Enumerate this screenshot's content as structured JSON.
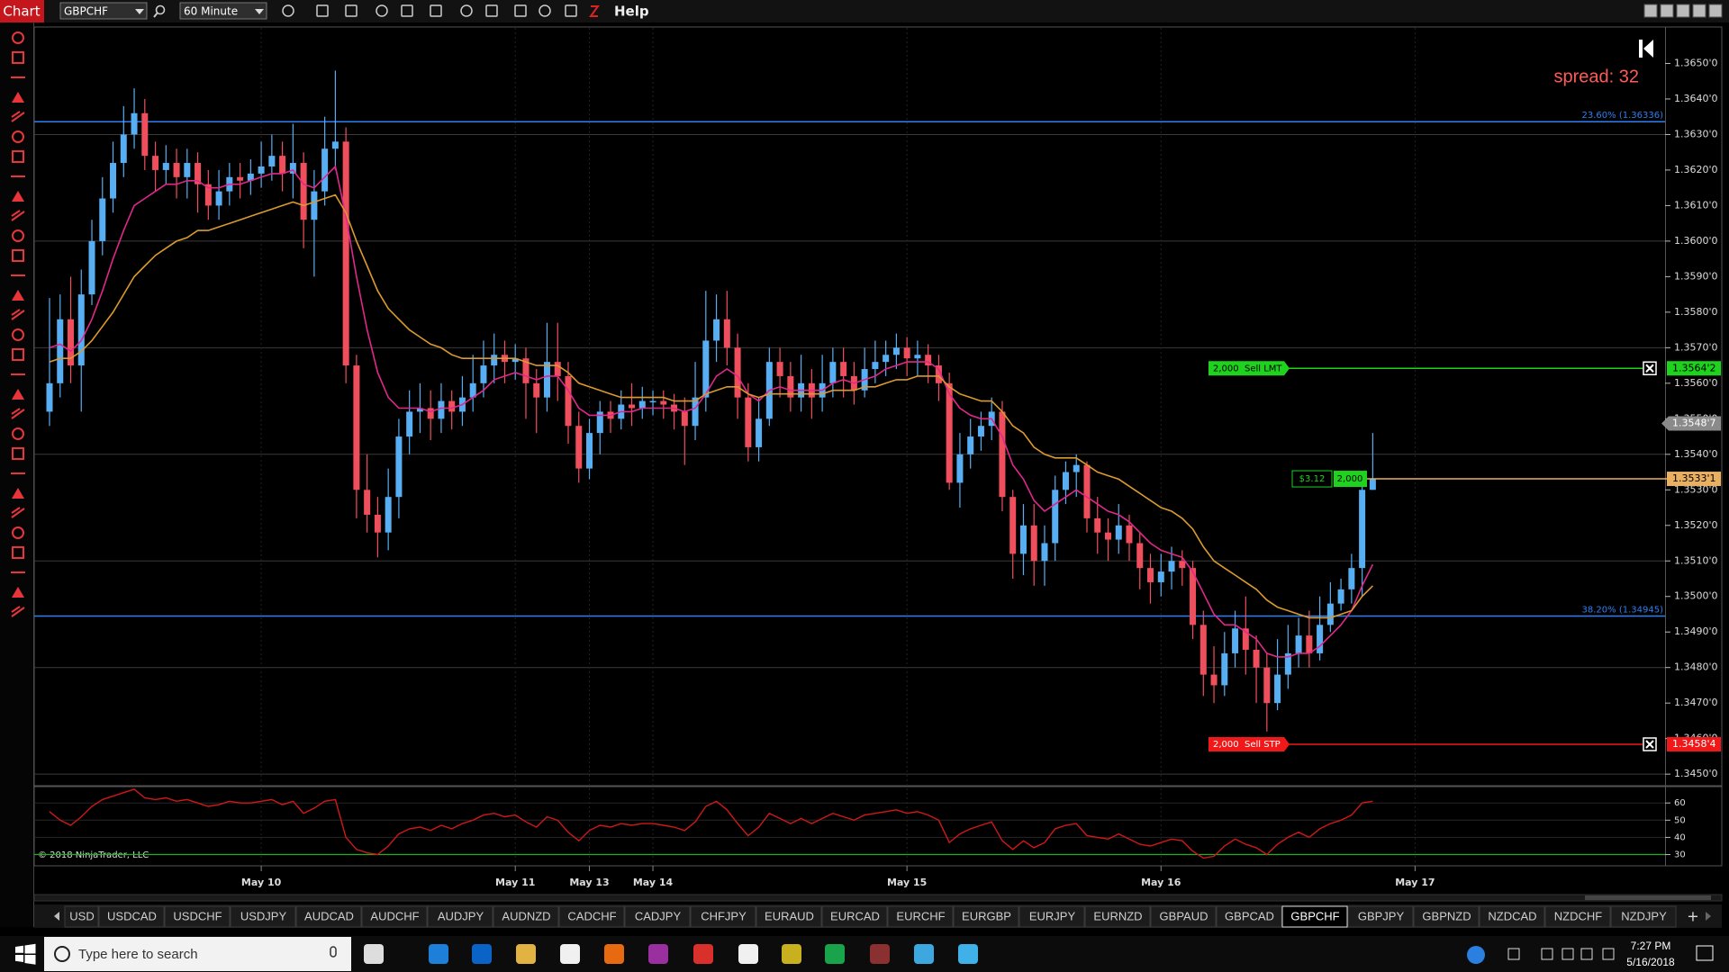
{
  "toolbar": {
    "title": "Chart",
    "instrument": "GBPCHF",
    "interval": "60 Minute",
    "help": "Help"
  },
  "chart_data": {
    "type": "candlestick",
    "categories": [
      null,
      null,
      null,
      null,
      null,
      null,
      null,
      null,
      null,
      null,
      null,
      null,
      null,
      null,
      null,
      null,
      null,
      null,
      null,
      null,
      "May 10",
      null,
      null,
      null,
      null,
      null,
      null,
      null,
      null,
      null,
      null,
      null,
      null,
      null,
      null,
      null,
      null,
      null,
      null,
      null,
      null,
      null,
      null,
      null,
      "May 11",
      null,
      null,
      null,
      null,
      null,
      null,
      "May 13",
      null,
      null,
      null,
      null,
      null,
      "May 14",
      null,
      null,
      null,
      null,
      null,
      null,
      null,
      null,
      null,
      null,
      null,
      null,
      null,
      null,
      null,
      null,
      null,
      null,
      null,
      null,
      null,
      null,
      null,
      "May 15",
      null,
      null,
      null,
      null,
      null,
      null,
      null,
      null,
      null,
      null,
      null,
      null,
      null,
      null,
      null,
      null,
      null,
      null,
      null,
      null,
      null,
      null,
      null,
      "May 16",
      null,
      null,
      null,
      null,
      null,
      null,
      null,
      null,
      null,
      null,
      null,
      null,
      null,
      null,
      null,
      null,
      null,
      null,
      null,
      null,
      null,
      null,
      null,
      "May 17"
    ],
    "open": [
      1.3552,
      1.356,
      1.3578,
      1.3565,
      1.3585,
      1.36,
      1.3612,
      1.3622,
      1.363,
      1.3636,
      1.3624,
      1.362,
      1.3622,
      1.3618,
      1.3622,
      1.3616,
      1.361,
      1.3614,
      1.3618,
      1.3617,
      1.3619,
      1.3621,
      1.3624,
      1.3619,
      1.3622,
      1.3606,
      1.3614,
      1.3626,
      1.3628,
      1.3565,
      1.353,
      1.3523,
      1.3518,
      1.3528,
      1.3545,
      1.3552,
      1.3553,
      1.355,
      1.3555,
      1.3552,
      1.3556,
      1.356,
      1.3565,
      1.3568,
      1.3566,
      1.3567,
      1.356,
      1.3556,
      1.3566,
      1.3562,
      1.3548,
      1.3536,
      1.3546,
      1.3552,
      1.355,
      1.3554,
      1.3553,
      1.3555,
      1.3555,
      1.3554,
      1.3552,
      1.3548,
      1.3556,
      1.3572,
      1.3578,
      1.357,
      1.3556,
      1.3542,
      1.355,
      1.3566,
      1.3562,
      1.3556,
      1.356,
      1.3556,
      1.356,
      1.3566,
      1.3562,
      1.3558,
      1.3564,
      1.3566,
      1.3568,
      1.357,
      1.3567,
      1.3568,
      1.3565,
      1.356,
      1.3532,
      1.354,
      1.3545,
      1.3548,
      1.3552,
      1.3528,
      1.3512,
      1.352,
      1.351,
      1.3515,
      1.353,
      1.3535,
      1.3537,
      1.3522,
      1.3518,
      1.3516,
      1.352,
      1.3515,
      1.3508,
      1.3504,
      1.3507,
      1.351,
      1.3508,
      1.3492,
      1.3478,
      1.3475,
      1.3484,
      1.3491,
      1.3485,
      1.348,
      1.347,
      1.3478,
      1.3484,
      1.3489,
      1.3484,
      1.3492,
      1.3498,
      1.3502,
      1.3508,
      1.353,
      null,
      null,
      null,
      null
    ],
    "high": [
      1.3584,
      1.3585,
      1.359,
      1.3592,
      1.3606,
      1.3618,
      1.3628,
      1.3638,
      1.3643,
      1.364,
      1.3628,
      1.3627,
      1.3626,
      1.3626,
      1.3625,
      1.362,
      1.362,
      1.3622,
      1.3622,
      1.3623,
      1.3628,
      1.363,
      1.3628,
      1.3633,
      1.3625,
      1.362,
      1.3635,
      1.3648,
      1.3632,
      1.3568,
      1.354,
      1.3528,
      1.3536,
      1.355,
      1.3558,
      1.356,
      1.3558,
      1.356,
      1.3558,
      1.3562,
      1.3568,
      1.3572,
      1.3574,
      1.3572,
      1.3571,
      1.357,
      1.3564,
      1.3577,
      1.3577,
      1.3566,
      1.3552,
      1.355,
      1.3555,
      1.3555,
      1.3558,
      1.356,
      1.3559,
      1.3558,
      1.3558,
      1.3557,
      1.3556,
      1.3566,
      1.3586,
      1.3585,
      1.3586,
      1.3574,
      1.356,
      1.3556,
      1.357,
      1.357,
      1.3566,
      1.3568,
      1.3564,
      1.3568,
      1.357,
      1.357,
      1.3566,
      1.357,
      1.3572,
      1.3572,
      1.3574,
      1.3573,
      1.3572,
      1.3571,
      1.3568,
      1.3563,
      1.3546,
      1.355,
      1.3552,
      1.3556,
      1.3555,
      1.353,
      1.3526,
      1.3526,
      1.352,
      1.3534,
      1.3538,
      1.354,
      1.3538,
      1.3528,
      1.3522,
      1.3526,
      1.3523,
      1.3518,
      1.3512,
      1.3512,
      1.3514,
      1.3513,
      1.351,
      1.3496,
      1.3486,
      1.349,
      1.3496,
      1.35,
      1.3489,
      1.3484,
      1.3488,
      1.3492,
      1.3494,
      1.3496,
      1.35,
      1.3504,
      1.3505,
      1.3512,
      1.3533,
      1.3546,
      null,
      null,
      null,
      null
    ],
    "low": [
      1.3548,
      1.3556,
      1.356,
      1.3552,
      1.3582,
      1.3596,
      1.3608,
      1.3618,
      1.3626,
      1.362,
      1.3614,
      1.3616,
      1.3612,
      1.3612,
      1.3608,
      1.3606,
      1.3606,
      1.361,
      1.3612,
      1.3613,
      1.3615,
      1.3617,
      1.3614,
      1.3612,
      1.3598,
      1.359,
      1.361,
      1.362,
      1.356,
      1.3522,
      1.3518,
      1.3511,
      1.3513,
      1.3522,
      1.354,
      1.3546,
      1.3544,
      1.3546,
      1.3547,
      1.3548,
      1.3552,
      1.3556,
      1.356,
      1.356,
      1.3561,
      1.355,
      1.3546,
      1.3552,
      1.3555,
      1.3543,
      1.3532,
      1.3533,
      1.354,
      1.3546,
      1.3547,
      1.3548,
      1.355,
      1.3551,
      1.355,
      1.3547,
      1.3537,
      1.3544,
      1.3552,
      1.3566,
      1.3565,
      1.355,
      1.3538,
      1.3538,
      1.3548,
      1.3556,
      1.3552,
      1.3552,
      1.355,
      1.3552,
      1.3556,
      1.3556,
      1.3554,
      1.3556,
      1.356,
      1.3562,
      1.3564,
      1.3562,
      1.3562,
      1.356,
      1.3555,
      1.353,
      1.3525,
      1.3536,
      1.3541,
      1.3544,
      1.3524,
      1.3505,
      1.3506,
      1.3503,
      1.3503,
      1.351,
      1.3526,
      1.3528,
      1.3518,
      1.3512,
      1.351,
      1.3512,
      1.351,
      1.3502,
      1.3498,
      1.35,
      1.3502,
      1.3503,
      1.3488,
      1.3472,
      1.347,
      1.3472,
      1.348,
      1.3478,
      1.347,
      1.3462,
      1.3468,
      1.3474,
      1.348,
      1.348,
      1.3482,
      1.349,
      1.3496,
      1.3498,
      1.35,
      1.353,
      null,
      null,
      null,
      null
    ],
    "close": [
      1.356,
      1.3578,
      1.3565,
      1.3585,
      1.36,
      1.3612,
      1.3622,
      1.363,
      1.3636,
      1.3624,
      1.362,
      1.3622,
      1.3618,
      1.3622,
      1.3616,
      1.361,
      1.3614,
      1.3618,
      1.3617,
      1.3619,
      1.3621,
      1.3624,
      1.3619,
      1.3622,
      1.3606,
      1.3614,
      1.3626,
      1.3628,
      1.3565,
      1.353,
      1.3523,
      1.3518,
      1.3528,
      1.3545,
      1.3552,
      1.3553,
      1.355,
      1.3555,
      1.3552,
      1.3556,
      1.356,
      1.3565,
      1.3568,
      1.3566,
      1.3567,
      1.356,
      1.3556,
      1.3566,
      1.3562,
      1.3548,
      1.3536,
      1.3546,
      1.3552,
      1.355,
      1.3554,
      1.3553,
      1.3555,
      1.3555,
      1.3554,
      1.3552,
      1.3548,
      1.3556,
      1.3572,
      1.3578,
      1.357,
      1.3556,
      1.3542,
      1.355,
      1.3566,
      1.3562,
      1.3556,
      1.356,
      1.3556,
      1.356,
      1.3566,
      1.3562,
      1.3558,
      1.3564,
      1.3566,
      1.3568,
      1.357,
      1.3567,
      1.3568,
      1.3565,
      1.356,
      1.3532,
      1.354,
      1.3545,
      1.3548,
      1.3552,
      1.3528,
      1.3512,
      1.352,
      1.351,
      1.3515,
      1.353,
      1.3535,
      1.3537,
      1.3522,
      1.3518,
      1.3516,
      1.352,
      1.3515,
      1.3508,
      1.3504,
      1.3507,
      1.351,
      1.3508,
      1.3492,
      1.3478,
      1.3475,
      1.3484,
      1.3491,
      1.3485,
      1.348,
      1.347,
      1.3478,
      1.3484,
      1.3489,
      1.3484,
      1.3492,
      1.3498,
      1.3502,
      1.3508,
      1.353,
      1.3533,
      null,
      null,
      null,
      null
    ],
    "up_color": "#58aef2",
    "down_color": "#ef4f5c",
    "lines": [
      {
        "color": "#e0288c",
        "values": [
          1.357,
          1.3571,
          1.3569,
          1.3572,
          1.3578,
          1.3586,
          1.3595,
          1.3603,
          1.361,
          1.3612,
          1.3614,
          1.3616,
          1.3616,
          1.3617,
          1.3617,
          1.3615,
          1.3615,
          1.3616,
          1.3616,
          1.3617,
          1.3618,
          1.3619,
          1.3619,
          1.362,
          1.3616,
          1.3615,
          1.3618,
          1.3621,
          1.3607,
          1.359,
          1.3575,
          1.3563,
          1.3556,
          1.3553,
          1.3553,
          1.3553,
          1.3552,
          1.3553,
          1.3553,
          1.3554,
          1.3556,
          1.3558,
          1.3561,
          1.3562,
          1.3563,
          1.3562,
          1.3561,
          1.3562,
          1.3562,
          1.3558,
          1.3553,
          1.3551,
          1.3551,
          1.3551,
          1.3552,
          1.3552,
          1.3553,
          1.3553,
          1.3553,
          1.3553,
          1.3552,
          1.3553,
          1.3557,
          1.3562,
          1.3564,
          1.3562,
          1.3557,
          1.3555,
          1.3558,
          1.3559,
          1.3558,
          1.3558,
          1.3558,
          1.3558,
          1.356,
          1.3561,
          1.356,
          1.3561,
          1.3562,
          1.3564,
          1.3565,
          1.3566,
          1.3566,
          1.3566,
          1.3564,
          1.3557,
          1.3553,
          1.3551,
          1.355,
          1.355,
          1.3545,
          1.3537,
          1.3533,
          1.3527,
          1.3524,
          1.3526,
          1.3528,
          1.353,
          1.3528,
          1.3526,
          1.3524,
          1.3523,
          1.3521,
          1.3518,
          1.3515,
          1.3513,
          1.3512,
          1.3511,
          1.3507,
          1.3501,
          1.3495,
          1.3492,
          1.3492,
          1.349,
          1.3488,
          1.3484,
          1.3483,
          1.3483,
          1.3484,
          1.3484,
          1.3486,
          1.3489,
          1.3492,
          1.3496,
          1.3503,
          1.3509,
          null,
          null,
          null,
          null
        ]
      },
      {
        "color": "#dc9a2e",
        "values": [
          1.3566,
          1.3567,
          1.3567,
          1.3569,
          1.3572,
          1.3576,
          1.358,
          1.3585,
          1.359,
          1.3593,
          1.3596,
          1.3598,
          1.36,
          1.3601,
          1.3603,
          1.3603,
          1.3604,
          1.3605,
          1.3606,
          1.3607,
          1.3608,
          1.3609,
          1.361,
          1.3611,
          1.361,
          1.3611,
          1.3612,
          1.3613,
          1.3608,
          1.36,
          1.3593,
          1.3586,
          1.3581,
          1.3578,
          1.3575,
          1.3573,
          1.3571,
          1.357,
          1.3568,
          1.3567,
          1.3567,
          1.3567,
          1.3567,
          1.3567,
          1.3567,
          1.3566,
          1.3565,
          1.3565,
          1.3565,
          1.3563,
          1.356,
          1.3559,
          1.3558,
          1.3557,
          1.3556,
          1.3556,
          1.3556,
          1.3556,
          1.3556,
          1.3555,
          1.3555,
          1.3555,
          1.3557,
          1.3558,
          1.3559,
          1.3559,
          1.3557,
          1.3556,
          1.3557,
          1.3557,
          1.3557,
          1.3557,
          1.3557,
          1.3557,
          1.3558,
          1.3558,
          1.3558,
          1.3559,
          1.3559,
          1.356,
          1.3561,
          1.3561,
          1.3562,
          1.3562,
          1.3562,
          1.3559,
          1.3557,
          1.3556,
          1.3555,
          1.3555,
          1.3552,
          1.3548,
          1.3546,
          1.3542,
          1.354,
          1.3539,
          1.3539,
          1.3539,
          1.3537,
          1.3535,
          1.3534,
          1.3533,
          1.3531,
          1.3529,
          1.3527,
          1.3525,
          1.3524,
          1.3522,
          1.3519,
          1.3514,
          1.351,
          1.3508,
          1.3506,
          1.3504,
          1.3502,
          1.3499,
          1.3497,
          1.3496,
          1.3495,
          1.3494,
          1.3494,
          1.3494,
          1.3495,
          1.3496,
          1.35,
          1.3503,
          null,
          null,
          null,
          null
        ]
      }
    ],
    "ylim": [
      1.3447,
      1.366
    ],
    "yticks": [
      {
        "value": 1.345,
        "label": "1.3450'0"
      },
      {
        "value": 1.346,
        "label": "1.3460'0"
      },
      {
        "value": 1.347,
        "label": "1.3470'0"
      },
      {
        "value": 1.348,
        "label": "1.3480'0"
      },
      {
        "value": 1.349,
        "label": "1.3490'0"
      },
      {
        "value": 1.35,
        "label": "1.3500'0"
      },
      {
        "value": 1.351,
        "label": "1.3510'0"
      },
      {
        "value": 1.352,
        "label": "1.3520'0"
      },
      {
        "value": 1.353,
        "label": "1.3530'0"
      },
      {
        "value": 1.354,
        "label": "1.3540'0"
      },
      {
        "value": 1.355,
        "label": "1.3550'0"
      },
      {
        "value": 1.356,
        "label": "1.3560'0"
      },
      {
        "value": 1.357,
        "label": "1.3570'0"
      },
      {
        "value": 1.358,
        "label": "1.3580'0"
      },
      {
        "value": 1.359,
        "label": "1.3590'0"
      },
      {
        "value": 1.36,
        "label": "1.3600'0"
      },
      {
        "value": 1.361,
        "label": "1.3610'0"
      },
      {
        "value": 1.362,
        "label": "1.3620'0"
      },
      {
        "value": 1.363,
        "label": "1.3630'0"
      },
      {
        "value": 1.364,
        "label": "1.3640'0"
      },
      {
        "value": 1.365,
        "label": "1.3650'0"
      }
    ],
    "grid": true,
    "spread": "spread: 32",
    "fib_levels": [
      {
        "value": 1.36336,
        "label": "23.60% (1.36336)",
        "color": "#2f7ff0"
      },
      {
        "value": 1.34945,
        "label": "38.20% (1.34945)",
        "color": "#2f7ff0"
      }
    ],
    "orders": [
      {
        "label": "2,000  Sell LMT",
        "price": 1.35642,
        "price_label": "1.3564'2",
        "color": "#1ed21e"
      },
      {
        "label": "2,000  Sell STP",
        "price": 1.34584,
        "price_label": "1.3458'4",
        "color": "#f01818"
      }
    ],
    "position": {
      "pnl": "$3.12",
      "quantity": "2,000",
      "price": 1.35331,
      "price_label": "1.3533'1",
      "color": "#e8b060"
    },
    "last_price": {
      "price": 1.35487,
      "price_label": "1.3548'7"
    },
    "copyright": "© 2018 NinjaTrader, LLC",
    "indicator": {
      "type": "line",
      "color": "#d01818",
      "ylim": [
        24,
        69
      ],
      "yticks": [
        30,
        40,
        50,
        60
      ],
      "level": 30,
      "level_color": "#1fb01f",
      "values": [
        55,
        50,
        47,
        52,
        58,
        62,
        64,
        66,
        68,
        63,
        62,
        63,
        61,
        62,
        60,
        58,
        59,
        61,
        60,
        60,
        61,
        62,
        59,
        61,
        54,
        57,
        61,
        62,
        40,
        33,
        31,
        30,
        35,
        42,
        45,
        46,
        44,
        47,
        45,
        48,
        50,
        53,
        54,
        52,
        53,
        49,
        46,
        52,
        50,
        43,
        38,
        44,
        47,
        46,
        48,
        47,
        48,
        48,
        47,
        46,
        44,
        49,
        58,
        61,
        56,
        48,
        41,
        46,
        54,
        51,
        48,
        51,
        48,
        51,
        54,
        52,
        50,
        53,
        54,
        55,
        56,
        54,
        55,
        53,
        50,
        37,
        42,
        45,
        47,
        49,
        38,
        33,
        38,
        34,
        37,
        45,
        47,
        48,
        41,
        40,
        39,
        42,
        39,
        36,
        35,
        37,
        39,
        38,
        32,
        28,
        29,
        35,
        39,
        36,
        34,
        30,
        36,
        40,
        43,
        40,
        45,
        48,
        50,
        53,
        60,
        61,
        null,
        null,
        null,
        null
      ]
    }
  },
  "tabs": {
    "items": [
      "USD",
      "USDCAD",
      "USDCHF",
      "USDJPY",
      "AUDCAD",
      "AUDCHF",
      "AUDJPY",
      "AUDNZD",
      "CADCHF",
      "CADJPY",
      "CHFJPY",
      "EURAUD",
      "EURCAD",
      "EURCHF",
      "EURGBP",
      "EURJPY",
      "EURNZD",
      "GBPAUD",
      "GBPCAD",
      "GBPCHF",
      "GBPJPY",
      "GBPNZD",
      "NZDCAD",
      "NZDCHF",
      "NZDJPY"
    ],
    "selected": 19,
    "add": "+"
  },
  "taskbar": {
    "search": "Type here to search",
    "time": "7:27 PM",
    "date": "5/16/2018"
  }
}
